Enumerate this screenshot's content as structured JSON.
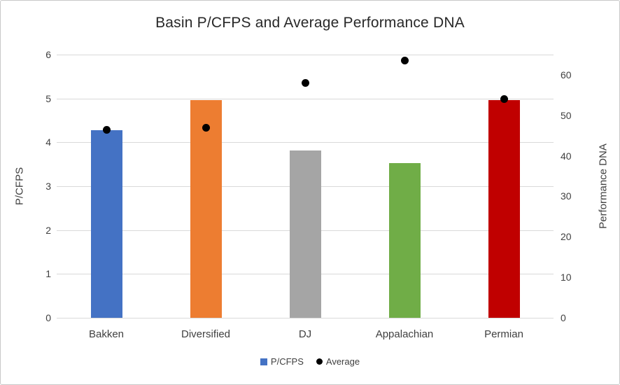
{
  "chart_data": {
    "type": "combo-bar-scatter",
    "title": "Basin P/CFPS and Average Performance DNA",
    "categories": [
      "Bakken",
      "Diversified",
      "DJ",
      "Appalachian",
      "Permian"
    ],
    "series": [
      {
        "name": "P/CFPS",
        "type": "bar",
        "axis": "left",
        "values": [
          4.27,
          4.97,
          3.81,
          3.53,
          4.97
        ],
        "colors": [
          "#4472C4",
          "#ED7D31",
          "#A5A5A5",
          "#70AD47",
          "#C00000"
        ]
      },
      {
        "name": "Average",
        "type": "scatter",
        "axis": "right",
        "values": [
          46.5,
          47,
          58,
          63.5,
          54
        ],
        "color": "#000000"
      }
    ],
    "left_axis": {
      "title": "P/CFPS",
      "min": 0,
      "max": 6,
      "ticks": [
        0,
        1,
        2,
        3,
        4,
        5,
        6
      ]
    },
    "right_axis": {
      "title": "Performance DNA",
      "min": 0,
      "max": 65,
      "ticks": [
        0,
        10,
        20,
        30,
        40,
        50,
        60
      ]
    },
    "legend": [
      {
        "label": "P/CFPS",
        "marker": "square",
        "color": "#4472C4"
      },
      {
        "label": "Average",
        "marker": "circle",
        "color": "#000000"
      }
    ],
    "grid": true,
    "legend_position": "bottom",
    "style_colors": {
      "gridline": "#D9D9D9",
      "axis_text": "#404040",
      "title_text": "#282828",
      "frame_border": "#C8C8C8",
      "background": "#FFFFFF"
    }
  }
}
